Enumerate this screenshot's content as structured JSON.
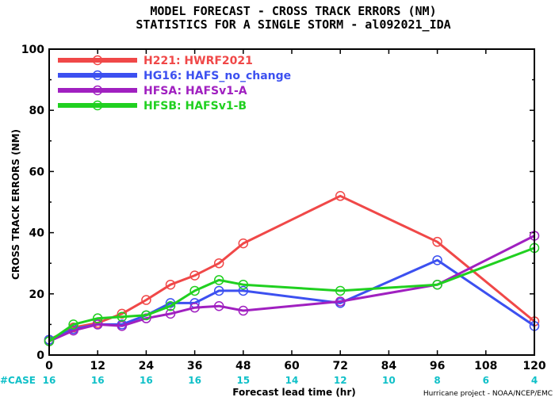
{
  "chart_data": {
    "type": "line",
    "title": "MODEL FORECAST - CROSS TRACK ERRORS (NM)",
    "subtitle": "STATISTICS FOR A SINGLE STORM - al092021_IDA",
    "xlabel": "Forecast lead time (hr)",
    "ylabel": "CROSS TRACK ERRORS (NM)",
    "xlim": [
      0,
      120
    ],
    "ylim": [
      0,
      100
    ],
    "x_ticks": [
      "0",
      "12",
      "24",
      "36",
      "48",
      "60",
      "72",
      "84",
      "96",
      "108",
      "120"
    ],
    "y_ticks": [
      "0",
      "20",
      "40",
      "60",
      "80",
      "100"
    ],
    "grid": false,
    "legend_position": "top-left",
    "series": [
      {
        "name": "H221: HWRF2021",
        "color": "#f04848",
        "points": [
          [
            0,
            5
          ],
          [
            6,
            9
          ],
          [
            12,
            10.5
          ],
          [
            18,
            13.5
          ],
          [
            24,
            18
          ],
          [
            30,
            23
          ],
          [
            36,
            26
          ],
          [
            42,
            30
          ],
          [
            48,
            36.5
          ],
          [
            72,
            52
          ],
          [
            96,
            37
          ],
          [
            120,
            11
          ]
        ]
      },
      {
        "name": "HG16: HAFS_no_change",
        "color": "#3c50f0",
        "points": [
          [
            0,
            5
          ],
          [
            6,
            8.5
          ],
          [
            12,
            10
          ],
          [
            18,
            10
          ],
          [
            24,
            13
          ],
          [
            30,
            17
          ],
          [
            36,
            17
          ],
          [
            42,
            21
          ],
          [
            48,
            21
          ],
          [
            72,
            17
          ],
          [
            96,
            31
          ],
          [
            120,
            9.5
          ]
        ]
      },
      {
        "name": "HFSA: HAFSv1-A",
        "color": "#a020c0",
        "points": [
          [
            0,
            4.5
          ],
          [
            6,
            8
          ],
          [
            12,
            10
          ],
          [
            18,
            9.5
          ],
          [
            24,
            12
          ],
          [
            30,
            13.5
          ],
          [
            36,
            15.5
          ],
          [
            42,
            16
          ],
          [
            48,
            14.5
          ],
          [
            72,
            17.5
          ],
          [
            96,
            23
          ],
          [
            120,
            39
          ]
        ]
      },
      {
        "name": "HFSB: HAFSv1-B",
        "color": "#20d020",
        "points": [
          [
            0,
            4.5
          ],
          [
            6,
            10
          ],
          [
            12,
            12
          ],
          [
            18,
            12.5
          ],
          [
            24,
            13
          ],
          [
            30,
            16
          ],
          [
            36,
            21
          ],
          [
            42,
            24.5
          ],
          [
            48,
            23
          ],
          [
            72,
            21
          ],
          [
            96,
            23
          ],
          [
            120,
            35
          ]
        ]
      }
    ],
    "case_counts": {
      "label": "#CASE",
      "x": [
        0,
        12,
        24,
        36,
        48,
        60,
        72,
        84,
        96,
        108,
        120
      ],
      "values": [
        "16",
        "16",
        "16",
        "16",
        "15",
        "14",
        "12",
        "10",
        "8",
        "6",
        "4"
      ]
    },
    "credit": "Hurricane project - NOAA/NCEP/EMC"
  }
}
